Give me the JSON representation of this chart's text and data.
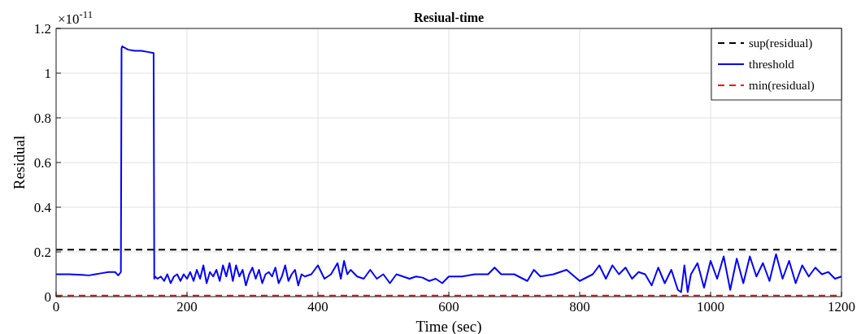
{
  "chart_data": {
    "type": "line",
    "title": "Resiual-time",
    "xlabel": "Time (sec)",
    "ylabel": "Residual",
    "annotations": [
      "×10$^{-11}$"
    ],
    "xlim": [
      0,
      1200
    ],
    "xticks": [
      0,
      200,
      400,
      600,
      800,
      1000,
      1200
    ],
    "ylim": [
      0,
      1.2
    ],
    "yticks": [
      0,
      {
        "value": 0.2,
        "label": "0.2"
      },
      {
        "value": 0.4,
        "label": "0.4"
      },
      {
        "value": 0.6,
        "label": "0.6"
      },
      {
        "value": 0.8,
        "label": "0.8"
      },
      1,
      {
        "value": 1.2,
        "label": "1.2"
      }
    ],
    "grid": true,
    "legend": "top right",
    "series": [
      {
        "name": "sup(residual)",
        "color": "#000000",
        "line_style": "dashed",
        "x": [
          0,
          1200
        ],
        "values": [
          0.21,
          0.21
        ]
      },
      {
        "name": "threshold",
        "color": "#0000ff",
        "line_style": "solid",
        "x": [
          0,
          20,
          40,
          50,
          60,
          70,
          80,
          90,
          95,
          99,
          100,
          101,
          110,
          120,
          130,
          140,
          149,
          150,
          151,
          155,
          160,
          165,
          170,
          175,
          180,
          185,
          190,
          195,
          200,
          205,
          210,
          215,
          220,
          225,
          230,
          235,
          240,
          245,
          250,
          255,
          260,
          265,
          270,
          275,
          280,
          285,
          290,
          295,
          300,
          305,
          310,
          315,
          320,
          325,
          330,
          335,
          340,
          345,
          350,
          355,
          360,
          365,
          370,
          375,
          380,
          390,
          400,
          410,
          420,
          430,
          435,
          440,
          445,
          450,
          460,
          470,
          480,
          490,
          500,
          510,
          520,
          530,
          540,
          550,
          560,
          570,
          580,
          590,
          600,
          620,
          640,
          660,
          670,
          680,
          700,
          720,
          730,
          740,
          760,
          780,
          800,
          820,
          830,
          840,
          850,
          860,
          870,
          880,
          890,
          900,
          910,
          920,
          930,
          940,
          950,
          955,
          960,
          965,
          970,
          980,
          990,
          1000,
          1010,
          1020,
          1030,
          1040,
          1050,
          1060,
          1070,
          1080,
          1090,
          1100,
          1110,
          1120,
          1130,
          1140,
          1150,
          1160,
          1170,
          1180,
          1190,
          1200
        ],
        "values": [
          0.1,
          0.1,
          0.097,
          0.095,
          0.1,
          0.105,
          0.11,
          0.11,
          0.095,
          0.11,
          1.11,
          1.12,
          1.105,
          1.1,
          1.1,
          1.095,
          1.09,
          0.08,
          0.09,
          0.08,
          0.09,
          0.07,
          0.1,
          0.06,
          0.09,
          0.1,
          0.07,
          0.1,
          0.08,
          0.11,
          0.07,
          0.12,
          0.08,
          0.14,
          0.06,
          0.11,
          0.09,
          0.12,
          0.07,
          0.14,
          0.09,
          0.15,
          0.07,
          0.14,
          0.09,
          0.12,
          0.05,
          0.1,
          0.13,
          0.08,
          0.12,
          0.06,
          0.1,
          0.11,
          0.09,
          0.13,
          0.06,
          0.09,
          0.14,
          0.07,
          0.1,
          0.12,
          0.05,
          0.1,
          0.09,
          0.1,
          0.14,
          0.08,
          0.1,
          0.15,
          0.08,
          0.16,
          0.1,
          0.12,
          0.09,
          0.08,
          0.12,
          0.08,
          0.1,
          0.06,
          0.1,
          0.09,
          0.08,
          0.09,
          0.085,
          0.07,
          0.08,
          0.06,
          0.09,
          0.09,
          0.1,
          0.1,
          0.13,
          0.1,
          0.1,
          0.07,
          0.12,
          0.09,
          0.1,
          0.12,
          0.07,
          0.1,
          0.14,
          0.08,
          0.14,
          0.1,
          0.13,
          0.08,
          0.11,
          0.1,
          0.05,
          0.13,
          0.06,
          0.12,
          0.03,
          0.02,
          0.14,
          0.02,
          0.1,
          0.15,
          0.04,
          0.16,
          0.08,
          0.18,
          0.03,
          0.17,
          0.06,
          0.18,
          0.09,
          0.15,
          0.07,
          0.19,
          0.08,
          0.16,
          0.06,
          0.14,
          0.09,
          0.13,
          0.1,
          0.11,
          0.08,
          0.09
        ]
      },
      {
        "name": "min(residual)",
        "color": "#ff0000",
        "line_style": "dashed",
        "x": [
          0,
          1200
        ],
        "values": [
          0.005,
          0.005
        ]
      }
    ]
  }
}
